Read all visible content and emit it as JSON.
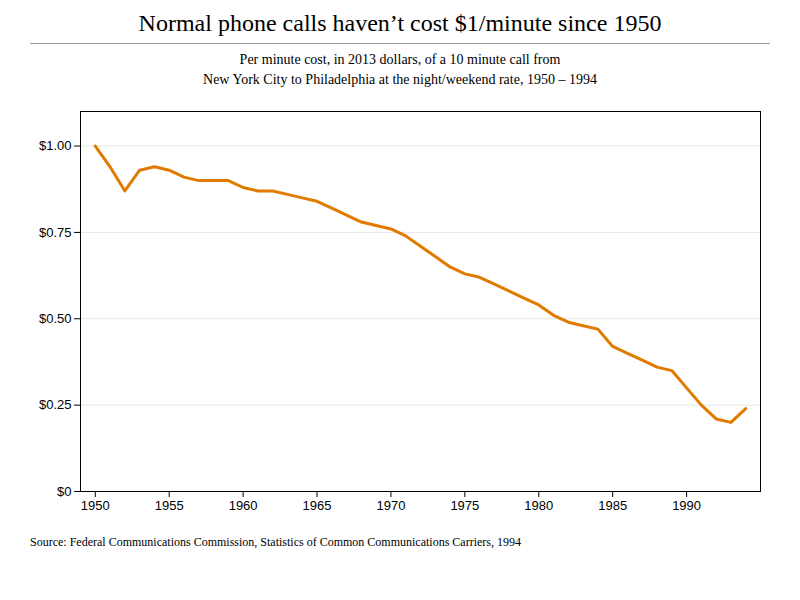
{
  "chart_data": {
    "type": "line",
    "title": "Normal phone calls haven’t cost $1/minute since 1950",
    "subtitle": [
      "Per minute cost, in 2013 dollars, of a 10 minute call from",
      "New York City to Philadelphia at the night/weekend rate, 1950 – 1994"
    ],
    "source": "Source: Federal Communications Commission, Statistics of Common Communications Carriers, 1994",
    "x": [
      1950,
      1951,
      1952,
      1953,
      1954,
      1955,
      1956,
      1957,
      1958,
      1959,
      1960,
      1961,
      1962,
      1963,
      1964,
      1965,
      1966,
      1967,
      1968,
      1969,
      1970,
      1971,
      1972,
      1973,
      1974,
      1975,
      1976,
      1977,
      1978,
      1979,
      1980,
      1981,
      1982,
      1983,
      1984,
      1985,
      1986,
      1987,
      1988,
      1989,
      1990,
      1991,
      1992,
      1993,
      1994
    ],
    "values": [
      1.0,
      0.94,
      0.87,
      0.93,
      0.94,
      0.93,
      0.91,
      0.9,
      0.9,
      0.9,
      0.88,
      0.87,
      0.87,
      0.86,
      0.85,
      0.84,
      0.82,
      0.8,
      0.78,
      0.77,
      0.76,
      0.74,
      0.71,
      0.68,
      0.65,
      0.63,
      0.62,
      0.6,
      0.58,
      0.56,
      0.54,
      0.51,
      0.49,
      0.48,
      0.47,
      0.42,
      0.4,
      0.38,
      0.36,
      0.35,
      0.3,
      0.25,
      0.21,
      0.2,
      0.24
    ],
    "color": "#e07b00",
    "xlim": [
      1949,
      1995
    ],
    "xticks": [
      1950,
      1955,
      1960,
      1965,
      1970,
      1975,
      1980,
      1985,
      1990
    ],
    "ylim": [
      0,
      1.1
    ],
    "yticks": [
      {
        "value": 0,
        "label": "$0"
      },
      {
        "value": 0.25,
        "label": "$0.25"
      },
      {
        "value": 0.5,
        "label": "$0.50"
      },
      {
        "value": 0.75,
        "label": "$0.75"
      },
      {
        "value": 1.0,
        "label": "$1.00"
      }
    ],
    "grid": true
  }
}
